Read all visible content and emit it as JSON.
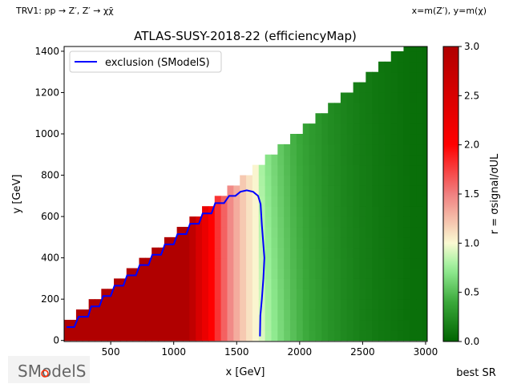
{
  "header": {
    "process_label": "TRV1: pp → Z′, Z′ → χχ̄",
    "axes_note": "x=m(Z′), y=m(χ)"
  },
  "footer": {
    "logo_text": "SModelS",
    "best_sr_label": "best SR"
  },
  "chart_data": {
    "type": "heatmap",
    "title": "ATLAS-SUSY-2018-22 (efficiencyMap)",
    "xlabel": "x [GeV]",
    "ylabel": "y [GeV]",
    "xlim": [
      130,
      3013
    ],
    "ylim": [
      -5,
      1423
    ],
    "xticks": [
      500,
      1000,
      1500,
      2000,
      2500,
      3000
    ],
    "yticks": [
      0,
      200,
      400,
      600,
      800,
      1000,
      1200,
      1400
    ],
    "grid": false,
    "cell_size_gev": 50,
    "y_upper_over_x": 0.5,
    "x_centers": [
      150,
      200,
      250,
      300,
      350,
      400,
      450,
      500,
      550,
      600,
      650,
      700,
      750,
      800,
      850,
      900,
      950,
      1000,
      1050,
      1100,
      1150,
      1200,
      1250,
      1300,
      1350,
      1400,
      1450,
      1500,
      1550,
      1600,
      1650,
      1700,
      1750,
      1800,
      1850,
      1900,
      1950,
      2000,
      2050,
      2100,
      2150,
      2200,
      2250,
      2300,
      2350,
      2400,
      2450,
      2500,
      2550,
      2600,
      2650,
      2700,
      2750,
      2800,
      2850,
      2900,
      2950,
      3000
    ],
    "r_values": [
      3,
      3,
      3,
      3,
      3,
      3,
      3,
      3,
      3,
      3,
      3,
      3,
      3,
      3,
      3,
      3,
      3,
      3,
      3,
      3,
      2.8,
      2.5,
      2.25,
      2.0,
      1.8,
      1.62,
      1.46,
      1.32,
      1.2,
      1.1,
      1.02,
      0.92,
      0.8,
      0.72,
      0.64,
      0.57,
      0.51,
      0.46,
      0.41,
      0.37,
      0.34,
      0.3,
      0.27,
      0.25,
      0.22,
      0.2,
      0.18,
      0.16,
      0.15,
      0.13,
      0.12,
      0.11,
      0.1,
      0.09,
      0.08,
      0.07,
      0.07,
      0.06
    ],
    "colorbar": {
      "label": "r = σsignal/σUL",
      "range": [
        0,
        3
      ],
      "ticks": [
        "0.0",
        "0.5",
        "1.0",
        "1.5",
        "2.0",
        "2.5",
        "3.0"
      ]
    },
    "legend": {
      "placement": "top-left",
      "entries": [
        "exclusion (SModelS)"
      ]
    },
    "series": [
      {
        "name": "exclusion (SModelS)",
        "color": "#0000ff",
        "points": [
          [
            150,
            65
          ],
          [
            210,
            65
          ],
          [
            245,
            115
          ],
          [
            320,
            115
          ],
          [
            345,
            165
          ],
          [
            410,
            165
          ],
          [
            440,
            215
          ],
          [
            500,
            215
          ],
          [
            530,
            265
          ],
          [
            600,
            265
          ],
          [
            630,
            315
          ],
          [
            700,
            315
          ],
          [
            730,
            365
          ],
          [
            800,
            365
          ],
          [
            830,
            415
          ],
          [
            900,
            415
          ],
          [
            930,
            465
          ],
          [
            1000,
            465
          ],
          [
            1030,
            515
          ],
          [
            1100,
            515
          ],
          [
            1130,
            565
          ],
          [
            1200,
            565
          ],
          [
            1230,
            615
          ],
          [
            1300,
            615
          ],
          [
            1330,
            665
          ],
          [
            1400,
            665
          ],
          [
            1440,
            700
          ],
          [
            1490,
            700
          ],
          [
            1530,
            720
          ],
          [
            1580,
            727
          ],
          [
            1630,
            720
          ],
          [
            1670,
            700
          ],
          [
            1690,
            660
          ],
          [
            1700,
            560
          ],
          [
            1720,
            400
          ],
          [
            1712,
            300
          ],
          [
            1700,
            200
          ],
          [
            1688,
            120
          ],
          [
            1685,
            20
          ]
        ]
      }
    ]
  }
}
